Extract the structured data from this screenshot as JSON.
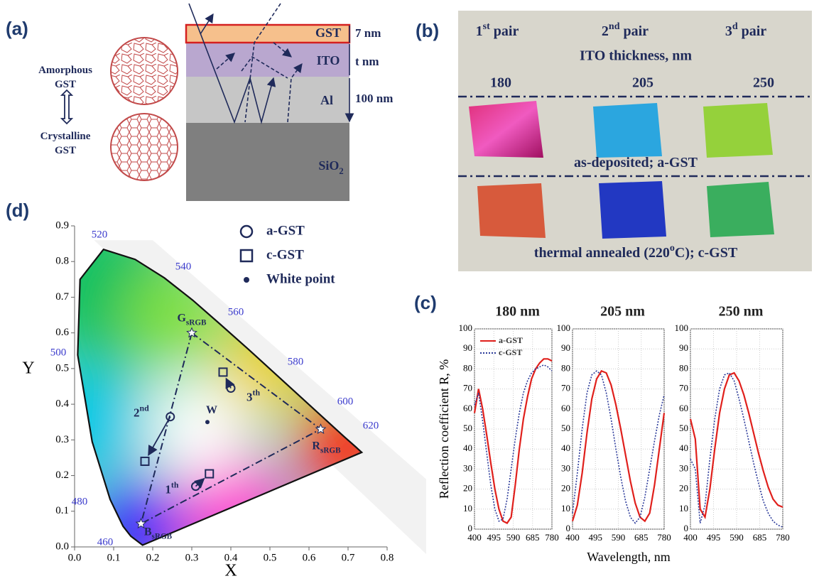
{
  "panel_labels": [
    "(a)",
    "(b)",
    "(c)",
    "(d)"
  ],
  "panel_a": {
    "phase_amorphous": [
      "Amorphous",
      "GST"
    ],
    "phase_crystalline": [
      "Crystalline",
      "GST"
    ],
    "layers": [
      [
        "GST"
      ],
      [
        "ITO"
      ],
      [
        "Al"
      ],
      [
        "SiO",
        "2"
      ]
    ],
    "thicknesses": [
      "7 nm",
      "t nm",
      "100 nm"
    ]
  },
  "panel_b": {
    "pairs": [
      [
        "1",
        "st",
        " pair"
      ],
      [
        "2",
        "nd",
        " pair"
      ],
      [
        "3",
        "d",
        " pair"
      ]
    ],
    "axis_title": "ITO thickness, nm",
    "thicknesses": [
      "180",
      "205",
      "250"
    ],
    "row_labels": [
      [
        "as-deposited; a-GST"
      ],
      [
        "thermal annealed (220",
        "o",
        "C); c-GST"
      ]
    ]
  },
  "panel_c": {
    "ylabel": "Reflection coefficient R, %",
    "xlabel": "Wavelength, nm"
  },
  "chart_data": [
    {
      "type": "line",
      "title": "180 nm",
      "x": [
        400,
        420,
        440,
        460,
        480,
        500,
        520,
        540,
        560,
        580,
        600,
        620,
        640,
        660,
        680,
        700,
        720,
        740,
        760,
        780
      ],
      "xlim": [
        400,
        780
      ],
      "xticks": [
        400,
        495,
        590,
        685,
        780
      ],
      "ylim": [
        0,
        100
      ],
      "yticks": [
        0,
        10,
        20,
        30,
        40,
        50,
        60,
        70,
        80,
        90,
        100
      ],
      "grid": true,
      "series": [
        {
          "name": "a-GST",
          "color": "#e0201c",
          "style": "solid",
          "values": [
            58,
            70,
            60,
            47,
            33,
            20,
            10,
            4,
            3,
            6,
            22,
            40,
            55,
            66,
            75,
            80,
            83,
            85,
            85,
            84
          ]
        },
        {
          "name": "c-GST",
          "color": "#2b3a9a",
          "style": "dotted",
          "values": [
            62,
            68,
            54,
            38,
            22,
            10,
            4,
            5,
            15,
            30,
            45,
            58,
            68,
            74,
            78,
            80,
            81,
            82,
            81,
            79
          ]
        }
      ]
    },
    {
      "type": "line",
      "title": "205 nm",
      "x": [
        400,
        420,
        440,
        460,
        480,
        500,
        520,
        540,
        560,
        580,
        600,
        620,
        640,
        660,
        680,
        700,
        720,
        740,
        760,
        780
      ],
      "xlim": [
        400,
        780
      ],
      "xticks": [
        400,
        495,
        590,
        685,
        780
      ],
      "ylim": [
        0,
        100
      ],
      "yticks": [
        0,
        10,
        20,
        30,
        40,
        50,
        60,
        70,
        80,
        90,
        100
      ],
      "grid": true,
      "series": [
        {
          "color": "#e0201c",
          "style": "solid",
          "values": [
            4,
            12,
            28,
            48,
            65,
            75,
            79,
            78,
            72,
            62,
            50,
            37,
            24,
            13,
            6,
            4,
            8,
            22,
            40,
            58
          ]
        },
        {
          "color": "#2b3a9a",
          "style": "dotted",
          "values": [
            8,
            28,
            50,
            68,
            77,
            79,
            77,
            68,
            55,
            40,
            26,
            14,
            6,
            3,
            6,
            16,
            30,
            44,
            57,
            67
          ]
        }
      ]
    },
    {
      "type": "line",
      "title": "250 nm",
      "x": [
        400,
        420,
        440,
        460,
        480,
        500,
        520,
        540,
        560,
        580,
        600,
        620,
        640,
        660,
        680,
        700,
        720,
        740,
        760,
        780
      ],
      "xlim": [
        400,
        780
      ],
      "xticks": [
        400,
        495,
        590,
        685,
        780
      ],
      "ylim": [
        0,
        100
      ],
      "yticks": [
        0,
        10,
        20,
        30,
        40,
        50,
        60,
        70,
        80,
        90,
        100
      ],
      "grid": true,
      "series": [
        {
          "color": "#e0201c",
          "style": "solid",
          "values": [
            55,
            45,
            10,
            6,
            20,
            40,
            58,
            70,
            77,
            78,
            74,
            67,
            58,
            48,
            38,
            29,
            21,
            15,
            12,
            11
          ]
        },
        {
          "color": "#2b3a9a",
          "style": "dotted",
          "values": [
            35,
            30,
            3,
            12,
            35,
            55,
            70,
            77,
            78,
            74,
            65,
            55,
            44,
            33,
            23,
            14,
            8,
            4,
            2,
            1
          ]
        }
      ]
    },
    {
      "type": "scatter",
      "xlabel": "X",
      "ylabel": "Y",
      "xlim": [
        0,
        0.8
      ],
      "ylim": [
        0,
        0.9
      ],
      "xticks": [
        {
          "value": 0,
          "label": "0.0"
        },
        0.1,
        0.2,
        0.3,
        0.4,
        0.5,
        0.6,
        0.7,
        0.8
      ],
      "yticks": [
        {
          "value": 0,
          "label": "0.0"
        },
        0.1,
        0.2,
        0.3,
        0.4,
        0.5,
        0.6,
        0.7,
        0.8,
        0.9
      ],
      "series": [
        {
          "name": "a-GST",
          "marker": "circle",
          "x": [
            0.31,
            0.245,
            0.4
          ],
          "values": [
            0.17,
            0.365,
            0.445
          ]
        },
        {
          "name": "c-GST",
          "marker": "square",
          "x": [
            0.345,
            0.18,
            0.38
          ],
          "values": [
            0.205,
            0.24,
            0.49
          ]
        },
        {
          "name": "White point",
          "marker": "dot",
          "x": [
            0.34
          ],
          "values": [
            0.35
          ]
        }
      ],
      "point_labels": [
        [
          "1",
          "th"
        ],
        [
          "2",
          "nd"
        ],
        [
          "3",
          "th"
        ]
      ],
      "white_label": "W",
      "gamut": {
        "x": [
          0.3,
          0.63,
          0.17
        ],
        "values": [
          0.6,
          0.33,
          0.065
        ],
        "labels": [
          [
            "G",
            "sRGB"
          ],
          [
            "R",
            "sRGB"
          ],
          [
            "B",
            "sRGB"
          ]
        ]
      },
      "wavelength_labels": [
        "460",
        "480",
        "500",
        "520",
        "540",
        "560",
        "580",
        "600",
        "620"
      ]
    }
  ]
}
